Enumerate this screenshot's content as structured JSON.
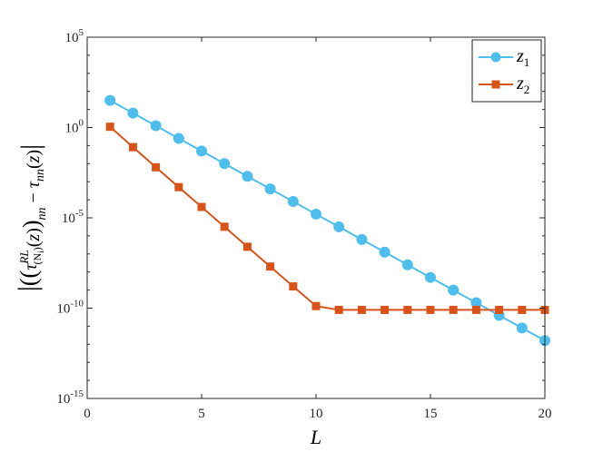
{
  "chart_data": {
    "type": "line",
    "xlabel": "L",
    "ylabel": "|(τ^{RL}_{(Ni)}(z))_{nn} − τ_{nn}(z)|",
    "xlim": [
      0,
      20
    ],
    "ylim": [
      1e-15,
      100000.0
    ],
    "yscale": "log",
    "xticks": [
      0,
      5,
      10,
      15,
      20
    ],
    "yticks": [
      1e-15,
      1e-10,
      1e-05,
      1.0,
      100000.0
    ],
    "ytick_mantissa": "10",
    "ytick_exponents": [
      "-15",
      "-10",
      "-5",
      "0",
      "5"
    ],
    "grid": false,
    "legend_position": "top-right",
    "series": [
      {
        "name": "z1",
        "label_main": "z",
        "label_sub": "1",
        "color": "#4DBEEE",
        "marker": "circle",
        "x": [
          1,
          2,
          3,
          4,
          5,
          6,
          7,
          8,
          9,
          10,
          11,
          12,
          13,
          14,
          15,
          16,
          17,
          18,
          19,
          20
        ],
        "y": [
          31.6,
          6.3,
          1.26,
          0.25,
          0.05,
          0.01,
          0.002,
          0.0004,
          8e-05,
          1.6e-05,
          3.2e-06,
          6.3e-07,
          1.26e-07,
          2.5e-08,
          5e-09,
          1e-09,
          2e-10,
          4e-11,
          8e-12,
          1.6e-12
        ]
      },
      {
        "name": "z2",
        "label_main": "z",
        "label_sub": "2",
        "color": "#D95319",
        "marker": "square",
        "x": [
          1,
          2,
          3,
          4,
          5,
          6,
          7,
          8,
          9,
          10,
          11,
          12,
          13,
          14,
          15,
          16,
          17,
          18,
          19,
          20
        ],
        "y": [
          1.1,
          0.082,
          0.0063,
          0.0005,
          4e-05,
          3.2e-06,
          2.5e-07,
          2e-08,
          1.6e-09,
          1.3e-10,
          8e-11,
          8e-11,
          8e-11,
          8e-11,
          8e-11,
          8e-11,
          8e-11,
          8e-11,
          8e-11,
          8e-11
        ]
      }
    ]
  }
}
